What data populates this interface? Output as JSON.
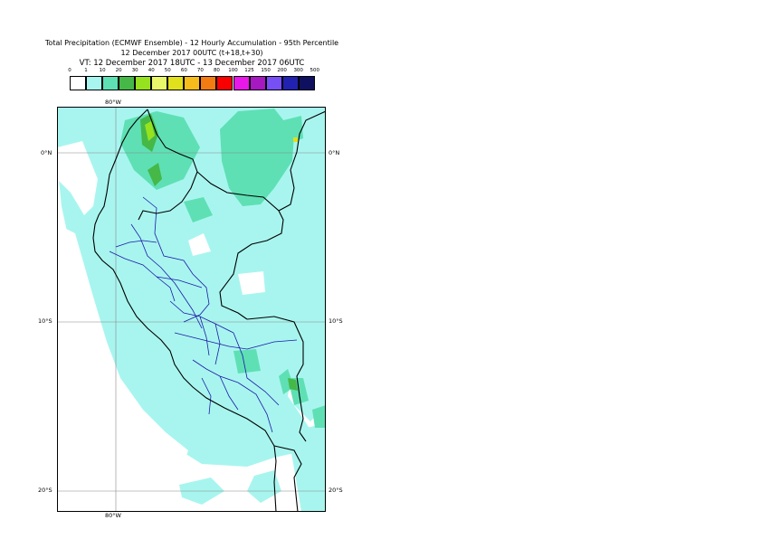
{
  "title": {
    "line1": "Total Precipitation (ECMWF Ensemble) - 12 Hourly Accumulation - 95th Percentile",
    "line2": "12 December 2017 00UTC (t+18,t+30)",
    "line3": "VT: 12 December 2017 18UTC - 13 December 2017 06UTC"
  },
  "legend": {
    "thresholds": [
      "0",
      "1",
      "10",
      "20",
      "30",
      "40",
      "50",
      "60",
      "70",
      "80",
      "100",
      "125",
      "150",
      "200",
      "300",
      "500"
    ],
    "colors": [
      "#ffffff",
      "#a8f5ef",
      "#5ee0b4",
      "#45b848",
      "#96e21e",
      "#e8f86a",
      "#e0e01c",
      "#f6bc1c",
      "#f27c12",
      "#fa0000",
      "#e818e8",
      "#a618c0",
      "#7650f4",
      "#2222b0",
      "#101060"
    ]
  },
  "axes": {
    "lon_top": "80°W",
    "lon_bottom": "80°W",
    "lat_left": [
      "0°N",
      "10°S",
      "20°S"
    ],
    "lat_right": [
      "0°N",
      "10°S",
      "20°S"
    ]
  },
  "map": {
    "background_color": "#ffffff",
    "coast_color": "#000000",
    "admin_color": "#1a1aa8",
    "gridline_color": "#888888"
  }
}
